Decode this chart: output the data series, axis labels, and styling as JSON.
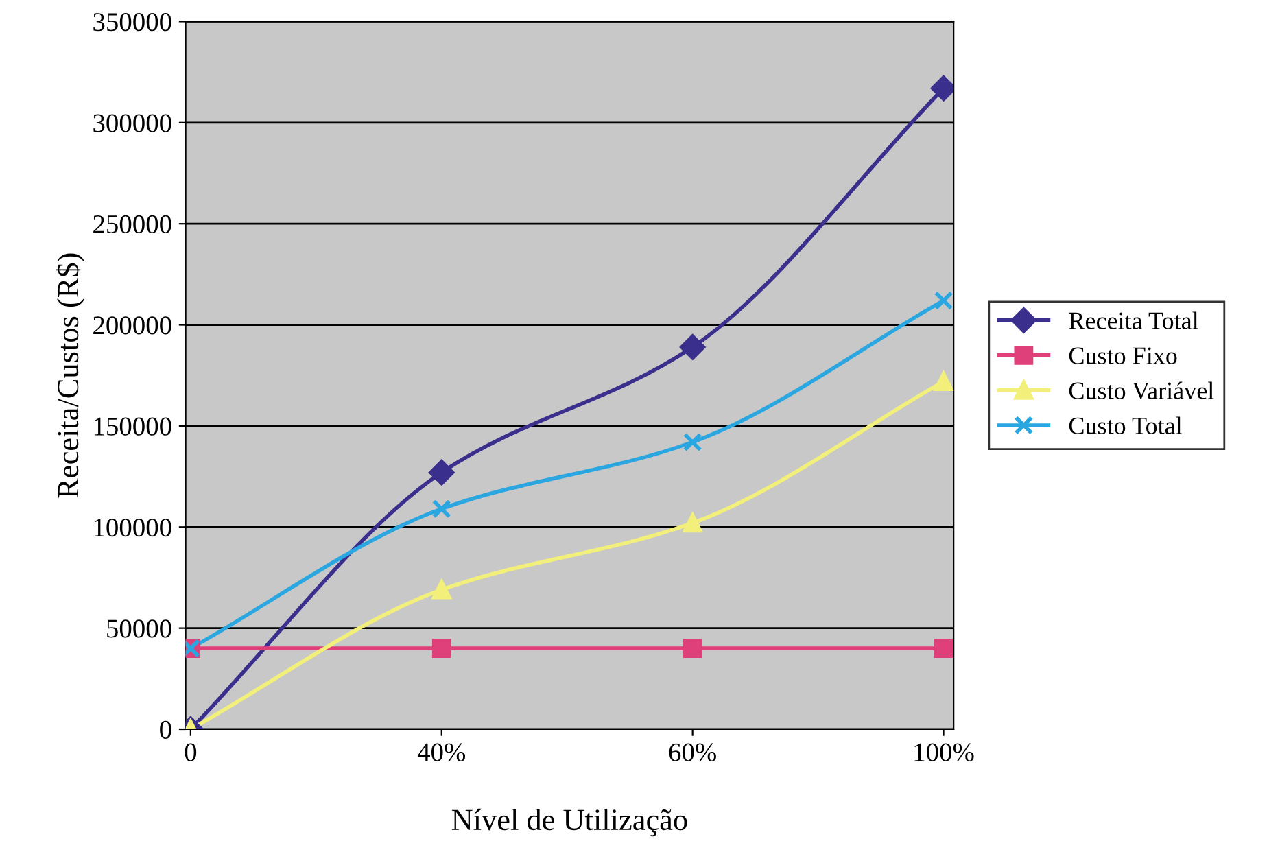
{
  "chart_data": {
    "type": "line",
    "xlabel": "Nível de Utilização",
    "ylabel": "Receita/Custos (R$)",
    "categories": [
      "0",
      "40%",
      "60%",
      "100%"
    ],
    "series": [
      {
        "name": "Receita Total",
        "color": "#3a2f8c",
        "marker": "diamond",
        "values": [
          0,
          127000,
          189000,
          317000
        ]
      },
      {
        "name": "Custo Fixo",
        "color": "#e0407a",
        "marker": "square",
        "values": [
          40000,
          40000,
          40000,
          40000
        ]
      },
      {
        "name": "Custo Variável",
        "color": "#f2f07a",
        "marker": "triangle",
        "values": [
          0,
          69000,
          102000,
          172000
        ]
      },
      {
        "name": "Custo Total",
        "color": "#2aa6e0",
        "marker": "cross",
        "values": [
          40000,
          109000,
          142000,
          212000
        ]
      }
    ],
    "ylim": [
      0,
      350000
    ],
    "yticks": [
      0,
      50000,
      100000,
      150000,
      200000,
      250000,
      300000,
      350000
    ],
    "grid": "y",
    "legend": "right",
    "line_style": "solid"
  }
}
